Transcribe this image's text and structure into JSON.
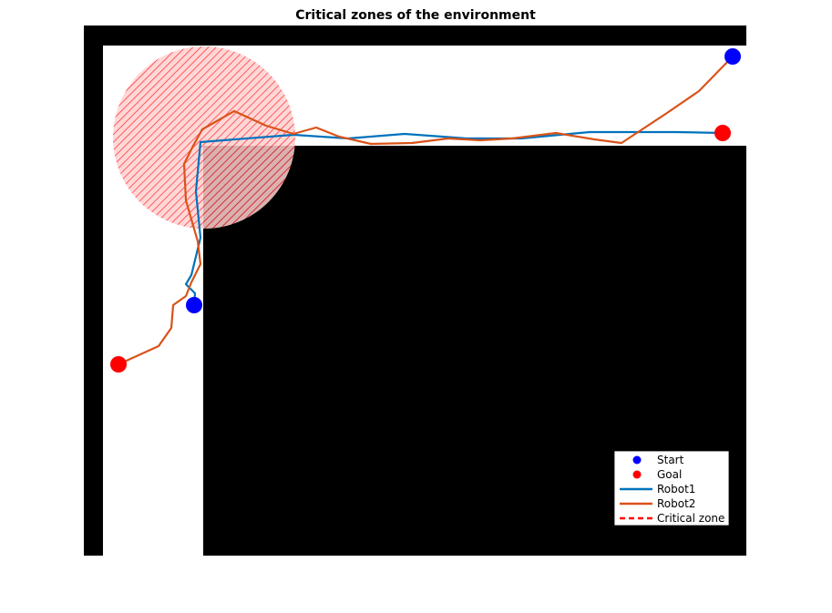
{
  "chart_data": {
    "type": "line",
    "title": "Critical zones of the environment",
    "xlabel": "",
    "ylabel": "",
    "xlim": [
      0,
      727
    ],
    "ylim": [
      0,
      582
    ],
    "grid": false,
    "legend_position": "bottom-right",
    "background_color": "#ffffff",
    "obstacle_color": "#000000",
    "obstacles": [
      {
        "name": "top-wall",
        "x0": 0,
        "x1": 727,
        "y0": 560,
        "y1": 582
      },
      {
        "name": "left-wall",
        "x0": 0,
        "x1": 21,
        "y0": 0,
        "y1": 582
      },
      {
        "name": "main-block",
        "x0": 131,
        "x1": 727,
        "y0": 0,
        "y1": 450
      }
    ],
    "critical_zone": {
      "cx": 132,
      "cy": 459,
      "r": 100,
      "color": "#ff0000"
    },
    "markers": {
      "start": [
        {
          "x": 712,
          "y": 548
        },
        {
          "x": 121,
          "y": 275
        }
      ],
      "goal": [
        {
          "x": 701,
          "y": 464
        },
        {
          "x": 38,
          "y": 210
        }
      ]
    },
    "series": [
      {
        "name": "Robot1",
        "color": "#0072BD",
        "x": [
          701,
          650,
          555,
          480,
          420,
          352,
          290,
          230,
          128,
          123,
          128,
          118,
          112,
          122,
          121
        ],
        "y": [
          464,
          465,
          465,
          458,
          458,
          463,
          458,
          462,
          454,
          400,
          349,
          308,
          298,
          288,
          275
        ],
        "points": [
          [
            701,
            464
          ],
          [
            650,
            465
          ],
          [
            555,
            465
          ],
          [
            480,
            458
          ],
          [
            420,
            458
          ],
          [
            352,
            463
          ],
          [
            290,
            458
          ],
          [
            230,
            462
          ],
          [
            128,
            454
          ],
          [
            123,
            400
          ],
          [
            128,
            349
          ],
          [
            118,
            308
          ],
          [
            112,
            298
          ],
          [
            122,
            288
          ],
          [
            121,
            275
          ]
        ]
      },
      {
        "name": "Robot2",
        "color": "#D95319",
        "x": [
          712,
          675,
          640,
          590,
          560,
          518,
          470,
          435,
          400,
          360,
          315,
          280,
          255,
          230,
          200,
          165,
          130,
          120,
          110,
          112,
          125,
          128,
          118,
          112,
          98,
          96,
          82,
          38
        ],
        "y": [
          548,
          510,
          486,
          453,
          457,
          464,
          458,
          456,
          458,
          453,
          452,
          460,
          470,
          463,
          472,
          488,
          468,
          450,
          430,
          390,
          345,
          320,
          300,
          285,
          275,
          250,
          230,
          210
        ],
        "points": [
          [
            712,
            548
          ],
          [
            675,
            510
          ],
          [
            640,
            486
          ],
          [
            590,
            453
          ],
          [
            560,
            457
          ],
          [
            518,
            464
          ],
          [
            470,
            458
          ],
          [
            435,
            456
          ],
          [
            400,
            458
          ],
          [
            360,
            453
          ],
          [
            315,
            452
          ],
          [
            280,
            460
          ],
          [
            255,
            470
          ],
          [
            230,
            463
          ],
          [
            200,
            472
          ],
          [
            165,
            488
          ],
          [
            130,
            468
          ],
          [
            120,
            450
          ],
          [
            110,
            430
          ],
          [
            112,
            390
          ],
          [
            125,
            345
          ],
          [
            128,
            320
          ],
          [
            118,
            300
          ],
          [
            112,
            285
          ],
          [
            98,
            275
          ],
          [
            96,
            250
          ],
          [
            82,
            230
          ],
          [
            38,
            210
          ]
        ]
      }
    ],
    "legend": [
      {
        "label": "Start",
        "kind": "marker",
        "color": "#0000ff"
      },
      {
        "label": "Goal",
        "kind": "marker",
        "color": "#ff0000"
      },
      {
        "label": "Robot1",
        "kind": "line",
        "color": "#0072BD"
      },
      {
        "label": "Robot2",
        "kind": "line",
        "color": "#D95319"
      },
      {
        "label": "Critical zone",
        "kind": "dashed",
        "color": "#ff0000"
      }
    ]
  }
}
